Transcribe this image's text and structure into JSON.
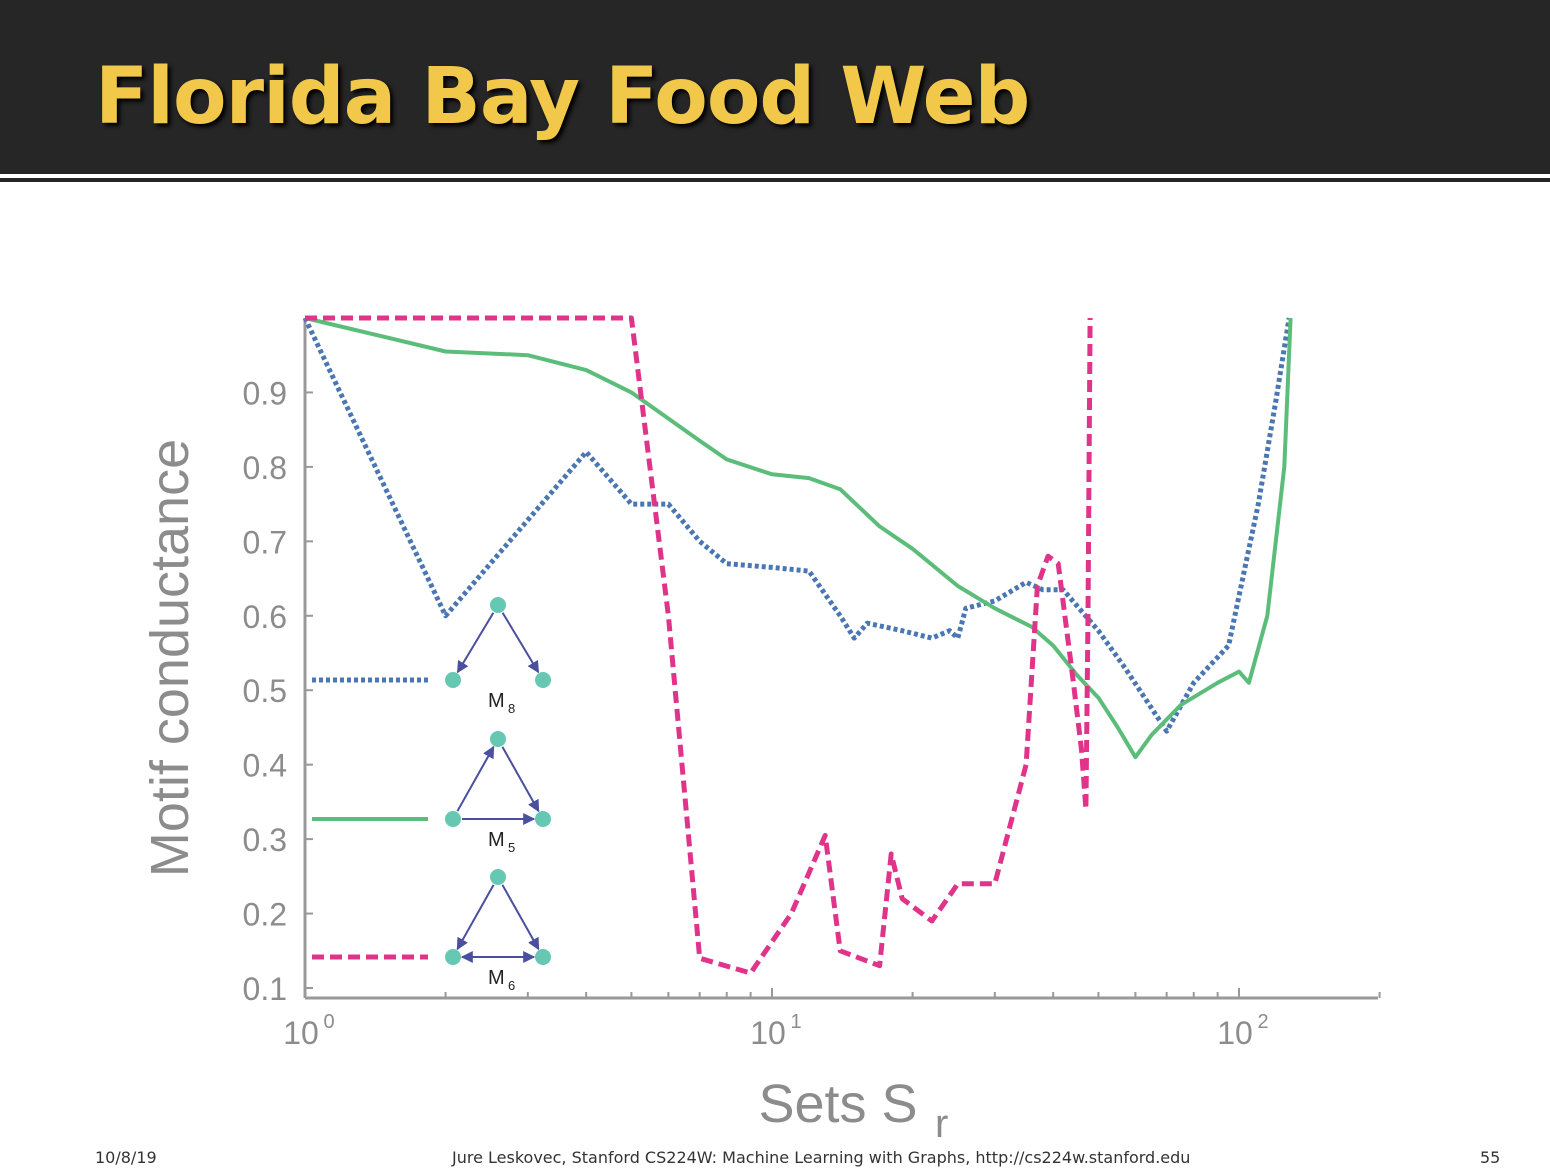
{
  "slide": {
    "title": "Florida Bay Food Web",
    "footer_date": "10/8/19",
    "footer_credit": "Jure Leskovec, Stanford CS224W: Machine Learning with Graphs, http://cs224w.stanford.edu",
    "page_number": "55"
  },
  "colors": {
    "title_bar": "#262626",
    "title_text": "#f2c84b",
    "M8": "#4a77b4",
    "M5": "#5cbd7a",
    "M6": "#e0348a",
    "axis": "#999999",
    "node": "#66c7b2",
    "arrow": "#4a4f9e"
  },
  "chart_data": {
    "type": "line",
    "xlabel": "Sets S",
    "xlabel_subscript": "r",
    "ylabel": "Motif conductance",
    "xscale": "log",
    "xlim": [
      1,
      200
    ],
    "ylim": [
      0.1,
      1.0
    ],
    "x_ticks": [
      {
        "value": 1,
        "label": "10",
        "exp": "0"
      },
      {
        "value": 10,
        "label": "10",
        "exp": "1"
      },
      {
        "value": 100,
        "label": "10",
        "exp": "2"
      }
    ],
    "y_ticks": [
      0.1,
      0.2,
      0.3,
      0.4,
      0.5,
      0.6,
      0.7,
      0.8,
      0.9
    ],
    "grid": false,
    "legend_position": "left",
    "series": [
      {
        "name": "M",
        "subscript": "8",
        "color_key": "M8",
        "style": "dotted",
        "points": [
          [
            1,
            1.0
          ],
          [
            2,
            0.6
          ],
          [
            4,
            0.82
          ],
          [
            5,
            0.75
          ],
          [
            6,
            0.75
          ],
          [
            7,
            0.7
          ],
          [
            8,
            0.67
          ],
          [
            10,
            0.665
          ],
          [
            12,
            0.66
          ],
          [
            14,
            0.6
          ],
          [
            15,
            0.57
          ],
          [
            16,
            0.59
          ],
          [
            19,
            0.58
          ],
          [
            22,
            0.57
          ],
          [
            24,
            0.58
          ],
          [
            25,
            0.57
          ],
          [
            26,
            0.61
          ],
          [
            30,
            0.62
          ],
          [
            35,
            0.645
          ],
          [
            38,
            0.635
          ],
          [
            42,
            0.635
          ],
          [
            50,
            0.58
          ],
          [
            57,
            0.53
          ],
          [
            70,
            0.445
          ],
          [
            80,
            0.51
          ],
          [
            95,
            0.56
          ],
          [
            110,
            0.75
          ],
          [
            120,
            0.89
          ],
          [
            128,
            1.0
          ]
        ]
      },
      {
        "name": "M",
        "subscript": "5",
        "color_key": "M5",
        "style": "solid",
        "points": [
          [
            1,
            1.0
          ],
          [
            2,
            0.955
          ],
          [
            3,
            0.95
          ],
          [
            4,
            0.93
          ],
          [
            5,
            0.9
          ],
          [
            7,
            0.835
          ],
          [
            8,
            0.81
          ],
          [
            10,
            0.79
          ],
          [
            12,
            0.785
          ],
          [
            14,
            0.77
          ],
          [
            17,
            0.72
          ],
          [
            20,
            0.69
          ],
          [
            25,
            0.64
          ],
          [
            30,
            0.61
          ],
          [
            36,
            0.585
          ],
          [
            40,
            0.56
          ],
          [
            45,
            0.52
          ],
          [
            50,
            0.49
          ],
          [
            55,
            0.45
          ],
          [
            60,
            0.41
          ],
          [
            65,
            0.44
          ],
          [
            75,
            0.48
          ],
          [
            90,
            0.51
          ],
          [
            100,
            0.525
          ],
          [
            105,
            0.51
          ],
          [
            115,
            0.6
          ],
          [
            125,
            0.8
          ],
          [
            129,
            1.0
          ]
        ]
      },
      {
        "name": "M",
        "subscript": "6",
        "color_key": "M6",
        "style": "dashed",
        "points": [
          [
            1,
            1.0
          ],
          [
            5,
            1.0
          ],
          [
            6,
            0.6
          ],
          [
            7,
            0.14
          ],
          [
            9,
            0.12
          ],
          [
            11,
            0.2
          ],
          [
            13,
            0.305
          ],
          [
            14,
            0.15
          ],
          [
            17,
            0.13
          ],
          [
            18,
            0.28
          ],
          [
            19,
            0.22
          ],
          [
            22,
            0.19
          ],
          [
            25,
            0.24
          ],
          [
            30,
            0.24
          ],
          [
            35,
            0.4
          ],
          [
            37,
            0.64
          ],
          [
            39,
            0.68
          ],
          [
            41,
            0.67
          ],
          [
            44,
            0.52
          ],
          [
            46,
            0.42
          ],
          [
            47,
            0.34
          ],
          [
            47.5,
            0.6
          ],
          [
            48,
            1.0
          ]
        ]
      }
    ]
  }
}
